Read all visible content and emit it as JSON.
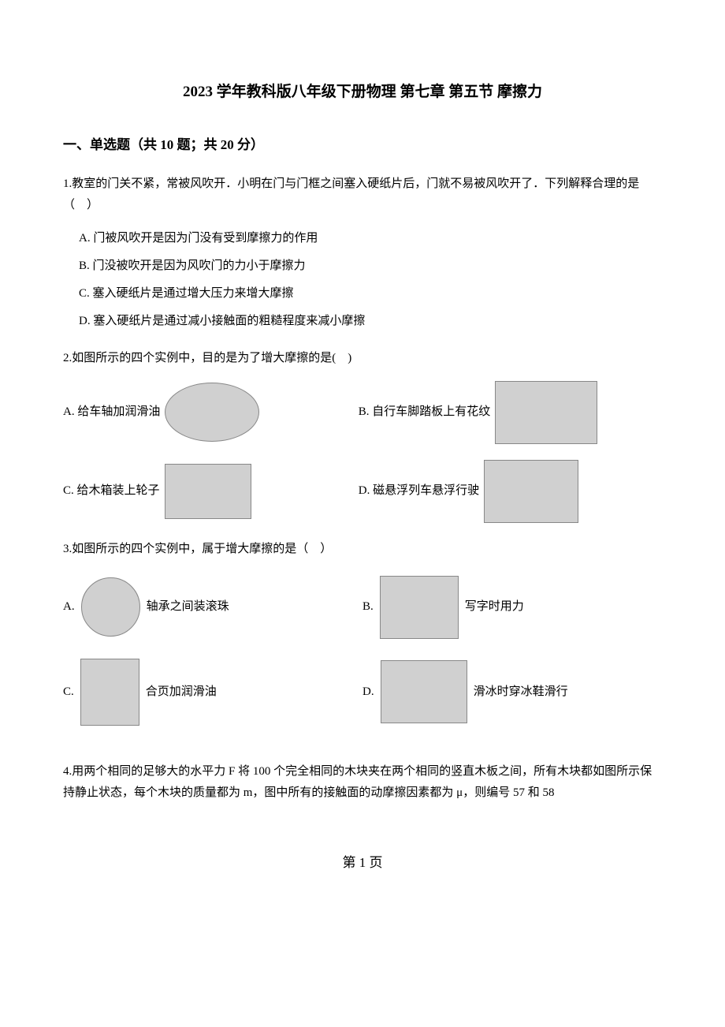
{
  "title": "2023 学年教科版八年级下册物理 第七章 第五节 摩擦力",
  "sectionHeader": "一、单选题（共 10 题；共 20 分）",
  "q1": {
    "text": "1.教室的门关不紧，常被风吹开．小明在门与门框之间塞入硬纸片后，门就不易被风吹开了．下列解释合理的是（　）",
    "optA": "A. 门被风吹开是因为门没有受到摩擦力的作用",
    "optB": "B. 门没被吹开是因为风吹门的力小于摩擦力",
    "optC": "C. 塞入硬纸片是通过增大压力来增大摩擦",
    "optD": "D. 塞入硬纸片是通过减小接触面的粗糙程度来减小摩擦"
  },
  "q2": {
    "text": "2.如图所示的四个实例中，目的是为了增大摩擦的是(　)",
    "optA": "A. 给车轴加润滑油",
    "optB": "B. 自行车脚踏板上有花纹",
    "optC": "C. 给木箱装上轮子",
    "optD": "D. 磁悬浮列车悬浮行驶"
  },
  "q3": {
    "text": "3.如图所示的四个实例中，属于增大摩擦的是（　）",
    "optA_prefix": "A.",
    "optA_text": "轴承之间装滚珠",
    "optB_prefix": "B.",
    "optB_text": "写字时用力",
    "optC_prefix": "C.",
    "optC_text": "合页加润滑油",
    "optD_prefix": "D.",
    "optD_text": "滑冰时穿冰鞋滑行"
  },
  "q4": {
    "text": "4.用两个相同的足够大的水平力 F 将 100 个完全相同的木块夹在两个相同的竖直木板之间，所有木块都如图所示保持静止状态，每个木块的质量都为 m，图中所有的接触面的动摩擦因素都为 μ，则编号 57 和 58"
  },
  "pageFooter": "第 1 页",
  "colors": {
    "text": "#000000",
    "background": "#ffffff",
    "imagePlaceholder": "#d0d0d0",
    "imageBorder": "#888888"
  },
  "typography": {
    "bodyFontSize": 15,
    "titleFontSize": 19,
    "sectionFontSize": 17,
    "footerFontSize": 17,
    "fontFamily": "SimSun"
  },
  "layout": {
    "pageWidth": 920,
    "pageHeight": 1302,
    "paddingTop": 100,
    "paddingSide": 80,
    "paddingBottom": 60
  }
}
